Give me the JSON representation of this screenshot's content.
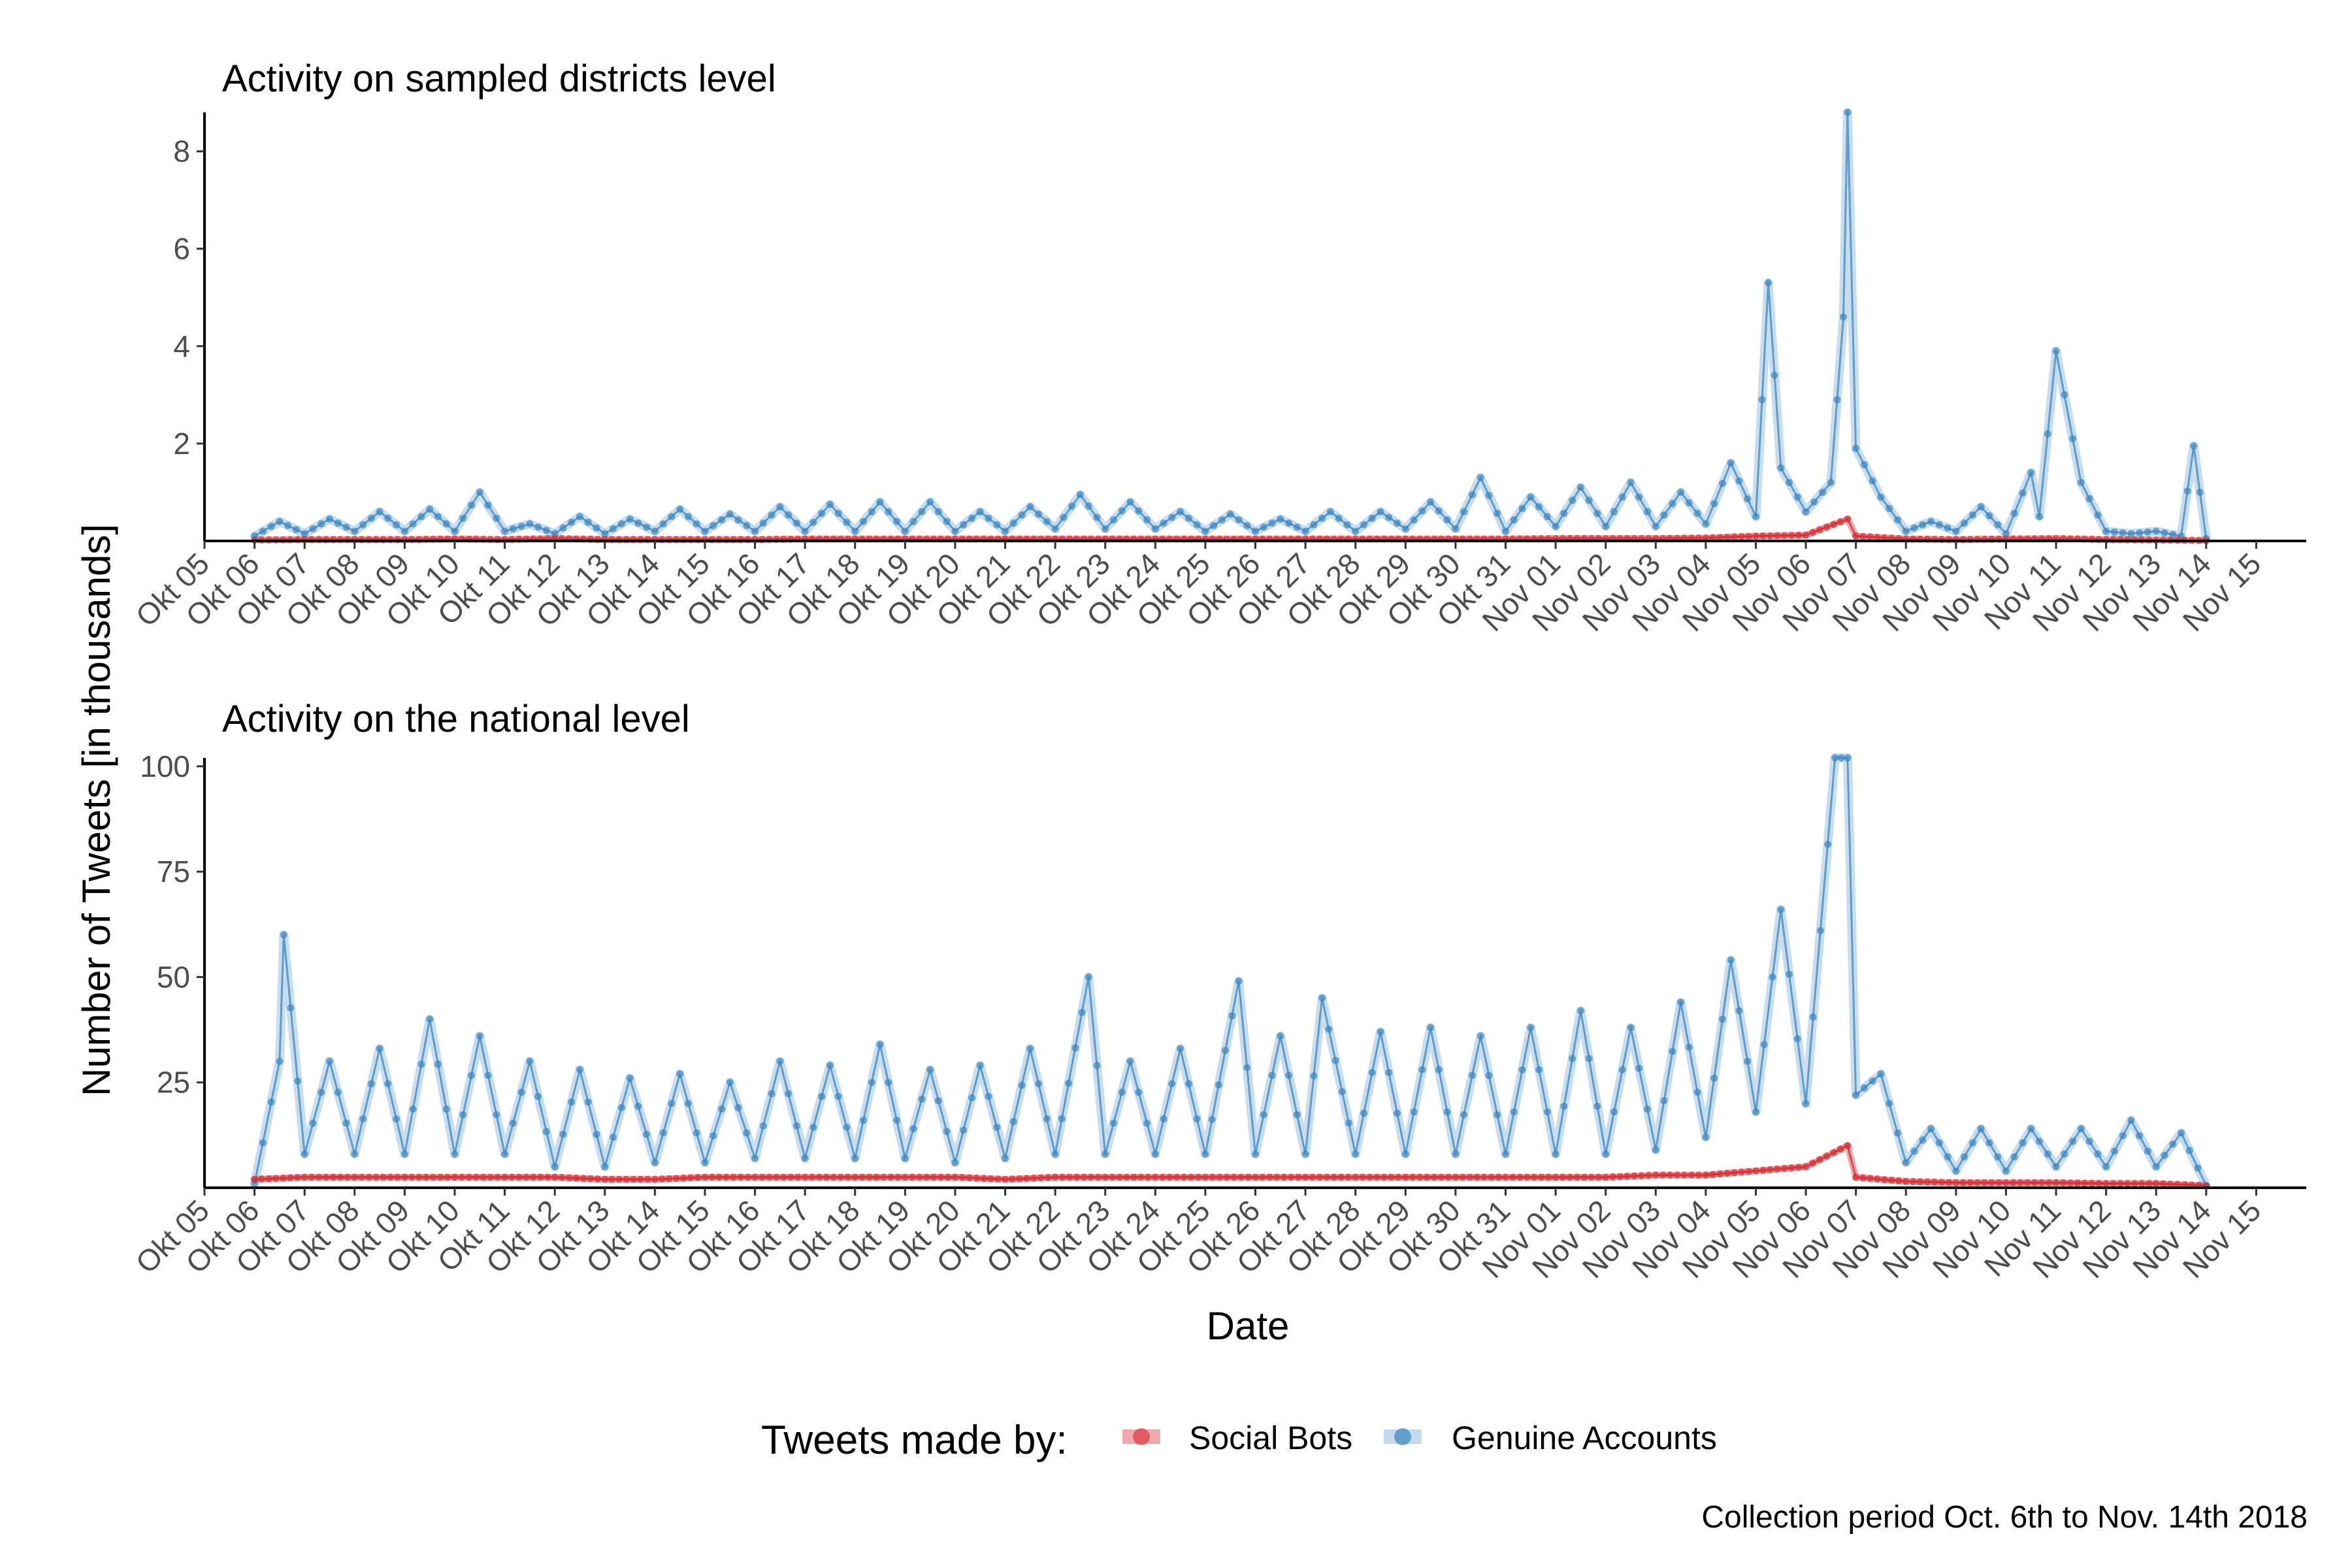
{
  "chart_data": {
    "type": "line",
    "ylabel": "Number of Tweets [in thousands]",
    "xlabel": "Date",
    "x_ticks": [
      "Okt 05",
      "Okt 06",
      "Okt 07",
      "Okt 08",
      "Okt 09",
      "Okt 10",
      "Okt 11",
      "Okt 12",
      "Okt 13",
      "Okt 14",
      "Okt 15",
      "Okt 16",
      "Okt 17",
      "Okt 18",
      "Okt 19",
      "Okt 20",
      "Okt 21",
      "Okt 22",
      "Okt 23",
      "Okt 24",
      "Okt 25",
      "Okt 26",
      "Okt 27",
      "Okt 28",
      "Okt 29",
      "Okt 30",
      "Okt 31",
      "Nov 01",
      "Nov 02",
      "Nov 03",
      "Nov 04",
      "Nov 05",
      "Nov 06",
      "Nov 07",
      "Nov 08",
      "Nov 09",
      "Nov 10",
      "Nov 11",
      "Nov 12",
      "Nov 13",
      "Nov 14",
      "Nov 15"
    ],
    "xlim": [
      "2018-10-05",
      "2018-11-16"
    ],
    "legend": {
      "title": "Tweets made by:",
      "position": "bottom",
      "entries": [
        {
          "label": "Social Bots",
          "color": "#d7282f"
        },
        {
          "label": "Genuine Accounts",
          "color": "#3a86c0"
        }
      ]
    },
    "caption": "Collection period Oct. 6th to Nov. 14th 2018",
    "grid": false,
    "panels": [
      {
        "title": "Activity on sampled districts level",
        "ylim": [
          0,
          8.8
        ],
        "y_ticks": [
          2,
          4,
          6,
          8
        ],
        "series": [
          {
            "name": "Genuine Accounts",
            "color": "#3a86c0",
            "x": [
              "2018-10-06",
              "2018-10-06 12:00",
              "2018-10-07",
              "2018-10-07 12:00",
              "2018-10-08",
              "2018-10-08 12:00",
              "2018-10-09",
              "2018-10-09 12:00",
              "2018-10-10",
              "2018-10-10 12:00",
              "2018-10-11",
              "2018-10-11 12:00",
              "2018-10-12",
              "2018-10-12 12:00",
              "2018-10-13",
              "2018-10-13 12:00",
              "2018-10-14",
              "2018-10-14 12:00",
              "2018-10-15",
              "2018-10-15 12:00",
              "2018-10-16",
              "2018-10-16 12:00",
              "2018-10-17",
              "2018-10-17 12:00",
              "2018-10-18",
              "2018-10-18 12:00",
              "2018-10-19",
              "2018-10-19 12:00",
              "2018-10-20",
              "2018-10-20 12:00",
              "2018-10-21",
              "2018-10-21 12:00",
              "2018-10-22",
              "2018-10-22 12:00",
              "2018-10-23",
              "2018-10-23 12:00",
              "2018-10-24",
              "2018-10-24 12:00",
              "2018-10-25",
              "2018-10-25 12:00",
              "2018-10-26",
              "2018-10-26 12:00",
              "2018-10-27",
              "2018-10-27 12:00",
              "2018-10-28",
              "2018-10-28 12:00",
              "2018-10-29",
              "2018-10-29 12:00",
              "2018-10-30",
              "2018-10-30 12:00",
              "2018-10-31",
              "2018-10-31 12:00",
              "2018-11-01",
              "2018-11-01 12:00",
              "2018-11-02",
              "2018-11-02 12:00",
              "2018-11-03",
              "2018-11-03 12:00",
              "2018-11-04",
              "2018-11-04 12:00",
              "2018-11-05",
              "2018-11-05 06:00",
              "2018-11-05 12:00",
              "2018-11-06",
              "2018-11-06 12:00",
              "2018-11-06 18:00",
              "2018-11-06 20:00",
              "2018-11-07",
              "2018-11-07 12:00",
              "2018-11-08",
              "2018-11-08 12:00",
              "2018-11-09",
              "2018-11-09 12:00",
              "2018-11-10",
              "2018-11-10 12:00",
              "2018-11-10 16:00",
              "2018-11-11",
              "2018-11-11 12:00",
              "2018-11-12",
              "2018-11-12 12:00",
              "2018-11-13",
              "2018-11-13 12:00",
              "2018-11-13 18:00",
              "2018-11-14"
            ],
            "values": [
              0.1,
              0.4,
              0.15,
              0.45,
              0.2,
              0.6,
              0.2,
              0.65,
              0.2,
              1.0,
              0.2,
              0.35,
              0.15,
              0.5,
              0.15,
              0.45,
              0.2,
              0.65,
              0.2,
              0.55,
              0.2,
              0.7,
              0.2,
              0.75,
              0.2,
              0.8,
              0.2,
              0.8,
              0.2,
              0.6,
              0.2,
              0.7,
              0.25,
              0.95,
              0.25,
              0.8,
              0.25,
              0.6,
              0.2,
              0.55,
              0.2,
              0.45,
              0.2,
              0.6,
              0.2,
              0.6,
              0.25,
              0.8,
              0.25,
              1.3,
              0.2,
              0.9,
              0.3,
              1.1,
              0.3,
              1.2,
              0.3,
              1.0,
              0.35,
              1.6,
              0.5,
              5.3,
              1.5,
              0.6,
              1.2,
              4.6,
              8.8,
              1.9,
              0.9,
              0.2,
              0.4,
              0.2,
              0.7,
              0.15,
              1.4,
              0.5,
              3.9,
              1.2,
              0.2,
              0.15,
              0.2,
              0.1,
              1.95,
              0.05
            ]
          },
          {
            "name": "Social Bots",
            "color": "#d7282f",
            "x": [
              "2018-10-06",
              "2018-10-07",
              "2018-10-08",
              "2018-10-09",
              "2018-10-10",
              "2018-10-11",
              "2018-10-12",
              "2018-10-13",
              "2018-10-14",
              "2018-10-15",
              "2018-10-16",
              "2018-10-17",
              "2018-10-18",
              "2018-10-19",
              "2018-10-20",
              "2018-10-21",
              "2018-10-22",
              "2018-10-23",
              "2018-10-24",
              "2018-10-25",
              "2018-10-26",
              "2018-10-27",
              "2018-10-28",
              "2018-10-29",
              "2018-10-30",
              "2018-10-31",
              "2018-11-01",
              "2018-11-02",
              "2018-11-03",
              "2018-11-04",
              "2018-11-05",
              "2018-11-06",
              "2018-11-06 20:00",
              "2018-11-07",
              "2018-11-08",
              "2018-11-09",
              "2018-11-10",
              "2018-11-11",
              "2018-11-12",
              "2018-11-13",
              "2018-11-14"
            ],
            "values": [
              0.02,
              0.03,
              0.03,
              0.03,
              0.04,
              0.03,
              0.05,
              0.03,
              0.03,
              0.03,
              0.03,
              0.04,
              0.04,
              0.04,
              0.04,
              0.04,
              0.04,
              0.04,
              0.04,
              0.04,
              0.04,
              0.04,
              0.04,
              0.04,
              0.04,
              0.04,
              0.05,
              0.05,
              0.05,
              0.06,
              0.1,
              0.12,
              0.45,
              0.1,
              0.04,
              0.03,
              0.04,
              0.05,
              0.03,
              0.02,
              0.01
            ]
          }
        ]
      },
      {
        "title": "Activity on the national level",
        "ylim": [
          0,
          102
        ],
        "y_ticks": [
          25,
          50,
          75,
          100
        ],
        "series": [
          {
            "name": "Genuine Accounts",
            "color": "#3a86c0",
            "x": [
              "2018-10-06",
              "2018-10-06 12:00",
              "2018-10-06 14:00",
              "2018-10-07",
              "2018-10-07 12:00",
              "2018-10-08",
              "2018-10-08 12:00",
              "2018-10-09",
              "2018-10-09 12:00",
              "2018-10-10",
              "2018-10-10 12:00",
              "2018-10-11",
              "2018-10-11 12:00",
              "2018-10-12",
              "2018-10-12 12:00",
              "2018-10-13",
              "2018-10-13 12:00",
              "2018-10-14",
              "2018-10-14 12:00",
              "2018-10-15",
              "2018-10-15 12:00",
              "2018-10-16",
              "2018-10-16 12:00",
              "2018-10-17",
              "2018-10-17 12:00",
              "2018-10-18",
              "2018-10-18 12:00",
              "2018-10-19",
              "2018-10-19 12:00",
              "2018-10-20",
              "2018-10-20 12:00",
              "2018-10-21",
              "2018-10-21 12:00",
              "2018-10-22",
              "2018-10-22 16:00",
              "2018-10-23",
              "2018-10-23 12:00",
              "2018-10-24",
              "2018-10-24 12:00",
              "2018-10-25",
              "2018-10-25 16:00",
              "2018-10-26",
              "2018-10-26 12:00",
              "2018-10-27",
              "2018-10-27 08:00",
              "2018-10-28",
              "2018-10-28 12:00",
              "2018-10-29",
              "2018-10-29 12:00",
              "2018-10-30",
              "2018-10-30 12:00",
              "2018-10-31",
              "2018-10-31 12:00",
              "2018-11-01",
              "2018-11-01 12:00",
              "2018-11-02",
              "2018-11-02 12:00",
              "2018-11-03",
              "2018-11-03 12:00",
              "2018-11-04",
              "2018-11-04 12:00",
              "2018-11-05",
              "2018-11-05 12:00",
              "2018-11-06",
              "2018-11-06 14:00",
              "2018-11-06 20:00",
              "2018-11-07",
              "2018-11-07 12:00",
              "2018-11-08",
              "2018-11-08 12:00",
              "2018-11-09",
              "2018-11-09 12:00",
              "2018-11-10",
              "2018-11-10 12:00",
              "2018-11-11",
              "2018-11-11 12:00",
              "2018-11-12",
              "2018-11-12 12:00",
              "2018-11-13",
              "2018-11-13 12:00",
              "2018-11-14"
            ],
            "values": [
              1,
              30,
              60,
              8,
              30,
              8,
              33,
              8,
              40,
              8,
              36,
              8,
              30,
              5,
              28,
              5,
              26,
              6,
              27,
              6,
              25,
              7,
              30,
              7,
              29,
              7,
              34,
              7,
              28,
              6,
              29,
              7,
              33,
              8,
              50,
              8,
              30,
              8,
              33,
              8,
              49,
              8,
              36,
              8,
              45,
              8,
              37,
              8,
              38,
              8,
              36,
              8,
              38,
              8,
              42,
              8,
              38,
              9,
              44,
              12,
              54,
              18,
              66,
              20,
              102,
              102,
              22,
              27,
              6,
              14,
              4,
              14,
              4,
              14,
              5,
              14,
              5,
              16,
              5,
              13,
              0.5
            ]
          },
          {
            "name": "Social Bots",
            "color": "#d7282f",
            "x": [
              "2018-10-06",
              "2018-10-07",
              "2018-10-08",
              "2018-10-09",
              "2018-10-10",
              "2018-10-11",
              "2018-10-12",
              "2018-10-13",
              "2018-10-14",
              "2018-10-15",
              "2018-10-16",
              "2018-10-17",
              "2018-10-18",
              "2018-10-19",
              "2018-10-20",
              "2018-10-21",
              "2018-10-22",
              "2018-10-23",
              "2018-10-24",
              "2018-10-25",
              "2018-10-26",
              "2018-10-27",
              "2018-10-28",
              "2018-10-29",
              "2018-10-30",
              "2018-10-31",
              "2018-11-01",
              "2018-11-02",
              "2018-11-03",
              "2018-11-04",
              "2018-11-05",
              "2018-11-06",
              "2018-11-06 20:00",
              "2018-11-07",
              "2018-11-08",
              "2018-11-09",
              "2018-11-10",
              "2018-11-11",
              "2018-11-12",
              "2018-11-13",
              "2018-11-14"
            ],
            "values": [
              2,
              2.5,
              2.5,
              2.5,
              2.5,
              2.5,
              2.5,
              2,
              2,
              2.5,
              2.5,
              2.5,
              2.5,
              2.5,
              2.5,
              2,
              2.5,
              2.5,
              2.5,
              2.5,
              2.5,
              2.5,
              2.5,
              2.5,
              2.5,
              2.5,
              2.5,
              2.5,
              3,
              3,
              4,
              5,
              10,
              2.5,
              1.5,
              1.2,
              1.2,
              1.2,
              1,
              1,
              0.5
            ]
          }
        ]
      }
    ]
  }
}
